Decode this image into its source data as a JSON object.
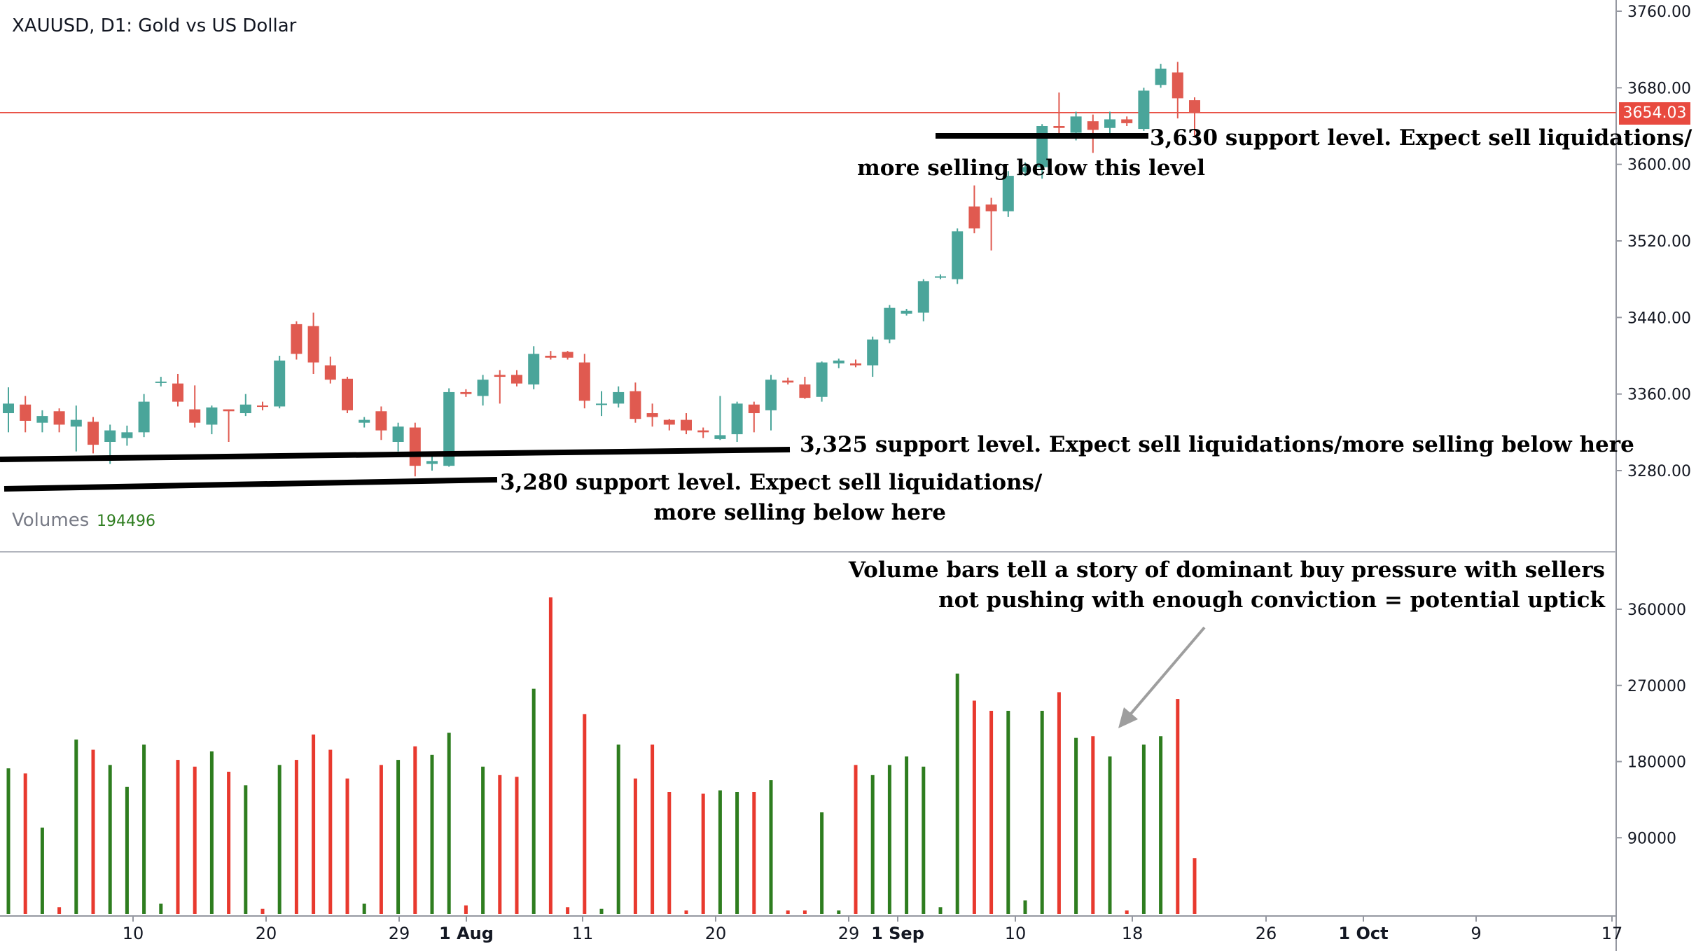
{
  "header": {
    "title": "XAUUSD, D1: Gold vs US Dollar"
  },
  "volume_pane": {
    "label": "Volumes",
    "current_value": "194496"
  },
  "price_line": {
    "value": 3654.03,
    "label": "3654.03",
    "color": "#e84a3f"
  },
  "colors": {
    "up": "#4aa59a",
    "down": "#e05a50",
    "vol_up": "#2e7d1f",
    "vol_down": "#e8392e",
    "annotation": "#000000",
    "arrow": "#9e9e9e"
  },
  "annotations": {
    "support_3630_line1": "3,630 support level. Expect sell liquidations/",
    "support_3630_line2": "more selling below this level",
    "support_3325": "3,325 support level. Expect sell liquidations/more selling below here",
    "support_3280_line1": "3,280 support level. Expect sell liquidations/",
    "support_3280_line2": "more selling below here",
    "volume_note_line1": "Volume bars tell a story of dominant buy pressure with sellers",
    "volume_note_line2": "not pushing with enough conviction = potential uptick"
  },
  "chart_data": {
    "type": "candlestick",
    "title": "XAUUSD, D1: Gold vs US Dollar",
    "price_axis": {
      "ylim": [
        3260,
        3760
      ],
      "ticks": [
        "3760.00",
        "3680.00",
        "3600.00",
        "3520.00",
        "3440.00",
        "3360.00",
        "3280.00"
      ],
      "tick_values": [
        3760,
        3680,
        3600,
        3520,
        3440,
        3360,
        3280
      ]
    },
    "volume_axis": {
      "ylim": [
        0,
        400000
      ],
      "ticks": [
        "360000",
        "270000",
        "180000",
        "90000"
      ],
      "tick_values": [
        360000,
        270000,
        180000,
        90000
      ]
    },
    "x_axis": {
      "ticks": [
        "10",
        "20",
        "29",
        "1 Aug",
        "11",
        "20",
        "29",
        "1 Sep",
        "10",
        "18",
        "26",
        "1 Oct",
        "9",
        "17"
      ]
    },
    "candles": [
      {
        "o": 3340,
        "h": 3367,
        "l": 3320,
        "c": 3350,
        "v": 172000
      },
      {
        "o": 3349,
        "h": 3358,
        "l": 3320,
        "c": 3332,
        "v": 166000
      },
      {
        "o": 3330,
        "h": 3343,
        "l": 3320,
        "c": 3337,
        "v": 102000
      },
      {
        "o": 3342,
        "h": 3345,
        "l": 3320,
        "c": 3328,
        "v": 8000
      },
      {
        "o": 3326,
        "h": 3348,
        "l": 3300,
        "c": 3333,
        "v": 206000
      },
      {
        "o": 3331,
        "h": 3336,
        "l": 3298,
        "c": 3307,
        "v": 194000
      },
      {
        "o": 3310,
        "h": 3328,
        "l": 3287,
        "c": 3322,
        "v": 176000
      },
      {
        "o": 3314,
        "h": 3327,
        "l": 3306,
        "c": 3320,
        "v": 150000
      },
      {
        "o": 3320,
        "h": 3360,
        "l": 3315,
        "c": 3352,
        "v": 200000
      },
      {
        "o": 3372,
        "h": 3378,
        "l": 3368,
        "c": 3373,
        "v": 12000
      },
      {
        "o": 3371,
        "h": 3381,
        "l": 3347,
        "c": 3352,
        "v": 182000
      },
      {
        "o": 3344,
        "h": 3369,
        "l": 3325,
        "c": 3330,
        "v": 174000
      },
      {
        "o": 3328,
        "h": 3348,
        "l": 3318,
        "c": 3346,
        "v": 192000
      },
      {
        "o": 3344,
        "h": 3344,
        "l": 3310,
        "c": 3342,
        "v": 168000
      },
      {
        "o": 3340,
        "h": 3360,
        "l": 3337,
        "c": 3349,
        "v": 152000
      },
      {
        "o": 3348,
        "h": 3352,
        "l": 3343,
        "c": 3347,
        "v": 6000
      },
      {
        "o": 3347,
        "h": 3400,
        "l": 3345,
        "c": 3395,
        "v": 176000
      },
      {
        "o": 3433,
        "h": 3436,
        "l": 3396,
        "c": 3402,
        "v": 182000
      },
      {
        "o": 3431,
        "h": 3445,
        "l": 3381,
        "c": 3393,
        "v": 212000
      },
      {
        "o": 3390,
        "h": 3399,
        "l": 3371,
        "c": 3375,
        "v": 194000
      },
      {
        "o": 3376,
        "h": 3378,
        "l": 3340,
        "c": 3343,
        "v": 160000
      },
      {
        "o": 3330,
        "h": 3336,
        "l": 3325,
        "c": 3333,
        "v": 12000
      },
      {
        "o": 3342,
        "h": 3347,
        "l": 3312,
        "c": 3322,
        "v": 176000
      },
      {
        "o": 3310,
        "h": 3330,
        "l": 3300,
        "c": 3326,
        "v": 182000
      },
      {
        "o": 3325,
        "h": 3330,
        "l": 3274,
        "c": 3285,
        "v": 198000
      },
      {
        "o": 3287,
        "h": 3300,
        "l": 3280,
        "c": 3290,
        "v": 188000
      },
      {
        "o": 3285,
        "h": 3366,
        "l": 3284,
        "c": 3362,
        "v": 214000
      },
      {
        "o": 3362,
        "h": 3365,
        "l": 3357,
        "c": 3360,
        "v": 10000
      },
      {
        "o": 3358,
        "h": 3380,
        "l": 3348,
        "c": 3375,
        "v": 174000
      },
      {
        "o": 3380,
        "h": 3385,
        "l": 3350,
        "c": 3378,
        "v": 164000
      },
      {
        "o": 3380,
        "h": 3385,
        "l": 3368,
        "c": 3371,
        "v": 162000
      },
      {
        "o": 3370,
        "h": 3410,
        "l": 3365,
        "c": 3402,
        "v": 266000
      },
      {
        "o": 3400,
        "h": 3405,
        "l": 3396,
        "c": 3398,
        "v": 374000
      },
      {
        "o": 3404,
        "h": 3405,
        "l": 3396,
        "c": 3398,
        "v": 8000
      },
      {
        "o": 3393,
        "h": 3402,
        "l": 3345,
        "c": 3353,
        "v": 236000
      },
      {
        "o": 3350,
        "h": 3363,
        "l": 3337,
        "c": 3350,
        "v": 6000
      },
      {
        "o": 3350,
        "h": 3368,
        "l": 3346,
        "c": 3362,
        "v": 200000
      },
      {
        "o": 3363,
        "h": 3372,
        "l": 3330,
        "c": 3334,
        "v": 160000
      },
      {
        "o": 3340,
        "h": 3350,
        "l": 3326,
        "c": 3336,
        "v": 200000
      },
      {
        "o": 3333,
        "h": 3334,
        "l": 3322,
        "c": 3328,
        "v": 144000
      },
      {
        "o": 3333,
        "h": 3340,
        "l": 3318,
        "c": 3322,
        "v": 4000
      },
      {
        "o": 3322,
        "h": 3325,
        "l": 3314,
        "c": 3320,
        "v": 142000
      },
      {
        "o": 3313,
        "h": 3358,
        "l": 3312,
        "c": 3317,
        "v": 146000
      },
      {
        "o": 3318,
        "h": 3352,
        "l": 3310,
        "c": 3350,
        "v": 144000
      },
      {
        "o": 3349,
        "h": 3352,
        "l": 3320,
        "c": 3340,
        "v": 144000
      },
      {
        "o": 3343,
        "h": 3380,
        "l": 3322,
        "c": 3375,
        "v": 158000
      },
      {
        "o": 3374,
        "h": 3377,
        "l": 3370,
        "c": 3372,
        "v": 4000
      },
      {
        "o": 3370,
        "h": 3378,
        "l": 3355,
        "c": 3356,
        "v": 4000
      },
      {
        "o": 3357,
        "h": 3394,
        "l": 3352,
        "c": 3393,
        "v": 120000
      },
      {
        "o": 3392,
        "h": 3397,
        "l": 3387,
        "c": 3395,
        "v": 4000
      },
      {
        "o": 3392,
        "h": 3396,
        "l": 3388,
        "c": 3390,
        "v": 176000
      },
      {
        "o": 3390,
        "h": 3420,
        "l": 3378,
        "c": 3417,
        "v": 164000
      },
      {
        "o": 3417,
        "h": 3453,
        "l": 3413,
        "c": 3450,
        "v": 176000
      },
      {
        "o": 3444,
        "h": 3449,
        "l": 3442,
        "c": 3447,
        "v": 186000
      },
      {
        "o": 3445,
        "h": 3480,
        "l": 3436,
        "c": 3478,
        "v": 174000
      },
      {
        "o": 3482,
        "h": 3485,
        "l": 3480,
        "c": 3483,
        "v": 8000
      },
      {
        "o": 3480,
        "h": 3533,
        "l": 3475,
        "c": 3530,
        "v": 284000
      },
      {
        "o": 3556,
        "h": 3578,
        "l": 3528,
        "c": 3533,
        "v": 252000
      },
      {
        "o": 3558,
        "h": 3565,
        "l": 3510,
        "c": 3551,
        "v": 240000
      },
      {
        "o": 3551,
        "h": 3593,
        "l": 3545,
        "c": 3588,
        "v": 240000
      },
      {
        "o": 3592,
        "h": 3602,
        "l": 3588,
        "c": 3597,
        "v": 16000
      },
      {
        "o": 3597,
        "h": 3642,
        "l": 3585,
        "c": 3640,
        "v": 240000
      },
      {
        "o": 3640,
        "h": 3675,
        "l": 3630,
        "c": 3638,
        "v": 262000
      },
      {
        "o": 3633,
        "h": 3655,
        "l": 3625,
        "c": 3650,
        "v": 208000
      },
      {
        "o": 3645,
        "h": 3652,
        "l": 3612,
        "c": 3636,
        "v": 210000
      },
      {
        "o": 3638,
        "h": 3655,
        "l": 3628,
        "c": 3647,
        "v": 186000
      },
      {
        "o": 3647,
        "h": 3650,
        "l": 3640,
        "c": 3643,
        "v": 4000
      },
      {
        "o": 3637,
        "h": 3680,
        "l": 3635,
        "c": 3677,
        "v": 200000
      },
      {
        "o": 3683,
        "h": 3705,
        "l": 3680,
        "c": 3700,
        "v": 210000
      },
      {
        "o": 3696,
        "h": 3707,
        "l": 3648,
        "c": 3669,
        "v": 254000
      },
      {
        "o": 3667,
        "h": 3670,
        "l": 3628,
        "c": 3654,
        "v": 66000
      }
    ]
  }
}
